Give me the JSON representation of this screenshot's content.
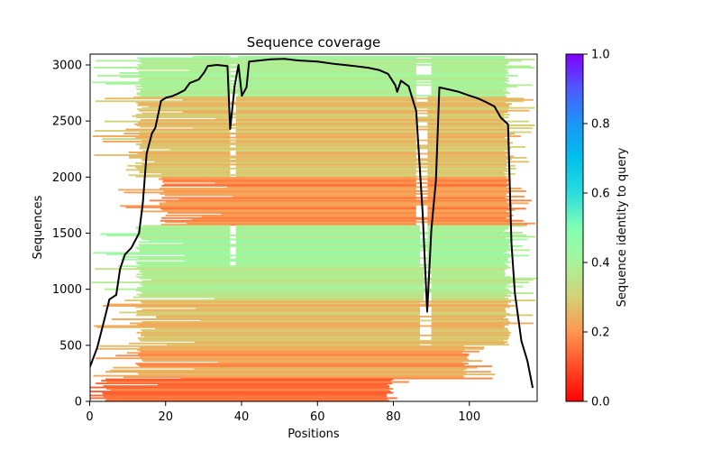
{
  "chart_data": {
    "type": "heatmap",
    "title": "Sequence coverage",
    "xlabel": "Positions",
    "ylabel": "Sequences",
    "xlim": [
      0,
      118
    ],
    "ylim": [
      0,
      3080
    ],
    "xticks": [
      0,
      20,
      40,
      60,
      80,
      100
    ],
    "xtick_labels": [
      "0",
      "20",
      "40",
      "60",
      "80",
      "100"
    ],
    "yticks": [
      0,
      500,
      1000,
      1500,
      2000,
      2500,
      3000
    ],
    "ytick_labels": [
      "0",
      "500",
      "1000",
      "1500",
      "2000",
      "2500",
      "3000"
    ],
    "grid": false,
    "colorbar": {
      "label": "Sequence identity to query",
      "colormap": "rainbow_r",
      "range": [
        0.0,
        1.0
      ],
      "ticks": [
        0.0,
        0.2,
        0.4,
        0.6,
        0.8,
        1.0
      ],
      "tick_labels": [
        "0.0",
        "0.2",
        "0.4",
        "0.6",
        "0.8",
        "1.0"
      ],
      "stops": [
        {
          "v": 0.0,
          "color": "#ff0000"
        },
        {
          "v": 0.1,
          "color": "#ff4d27"
        },
        {
          "v": 0.2,
          "color": "#ff964e"
        },
        {
          "v": 0.3,
          "color": "#d4d176"
        },
        {
          "v": 0.4,
          "color": "#a8f49a"
        },
        {
          "v": 0.5,
          "color": "#80ffb4"
        },
        {
          "v": 0.6,
          "color": "#2adddd"
        },
        {
          "v": 0.7,
          "color": "#00c0ec"
        },
        {
          "v": 0.8,
          "color": "#1a96f6"
        },
        {
          "v": 0.9,
          "color": "#4e5afc"
        },
        {
          "v": 1.0,
          "color": "#8000ff"
        }
      ]
    },
    "alignment_blocks": [
      {
        "seq_range": [
          2720,
          3080
        ],
        "identity": 0.4,
        "core_pos": [
          14,
          111
        ],
        "gaps": [
          [
            37,
            39
          ],
          [
            86,
            90
          ]
        ]
      },
      {
        "seq_range": [
          2000,
          2720
        ],
        "identity": 0.27,
        "core_pos": [
          14,
          111
        ],
        "gaps": [
          [
            37,
            38.5
          ],
          [
            86,
            89
          ]
        ]
      },
      {
        "seq_range": [
          1570,
          2000
        ],
        "identity": 0.19,
        "core_pos": [
          20,
          111
        ],
        "gaps": [
          [
            86,
            89
          ]
        ]
      },
      {
        "seq_range": [
          1200,
          1570
        ],
        "identity": 0.41,
        "core_pos": [
          14,
          111
        ],
        "gaps": [
          [
            37,
            38.5
          ],
          [
            87,
            89
          ]
        ]
      },
      {
        "seq_range": [
          900,
          1200
        ],
        "identity": 0.36,
        "core_pos": [
          14,
          111
        ],
        "gaps": [
          [
            88,
            90
          ]
        ]
      },
      {
        "seq_range": [
          500,
          900
        ],
        "identity": 0.27,
        "core_pos": [
          14,
          111
        ],
        "gaps": [
          [
            87,
            90
          ]
        ]
      },
      {
        "seq_range": [
          200,
          500
        ],
        "identity": 0.22,
        "core_pos": [
          14,
          100
        ],
        "gaps": []
      },
      {
        "seq_range": [
          0,
          200
        ],
        "identity": 0.14,
        "core_pos": [
          5,
          80
        ],
        "gaps": []
      }
    ],
    "coverage_line": {
      "name": "coverage",
      "color": "#000000",
      "x": [
        0,
        2,
        3.8,
        5.2,
        7,
        8,
        9.3,
        11,
        13,
        14,
        15,
        16.4,
        17.3,
        18.8,
        20.2,
        21.6,
        23,
        25,
        26.4,
        28.7,
        30.2,
        31.1,
        33.5,
        36.3,
        37,
        38.2,
        39.2,
        40.1,
        41.3,
        42,
        44.9,
        47.7,
        51.3,
        54.8,
        60,
        64.3,
        69.8,
        73.4,
        76.2,
        78.6,
        80.5,
        81,
        82,
        84,
        86,
        87.7,
        88.9,
        90,
        91.2,
        92.1,
        94.8,
        97.2,
        99.3,
        102.4,
        104.3,
        106.6,
        108.3,
        110.2,
        111.1,
        112,
        113.7,
        115.3,
        116.7
      ],
      "y": [
        300,
        480,
        720,
        910,
        950,
        1180,
        1310,
        1370,
        1500,
        1770,
        2210,
        2390,
        2440,
        2680,
        2710,
        2720,
        2740,
        2775,
        2840,
        2870,
        2935,
        2990,
        3000,
        2990,
        2430,
        2815,
        3000,
        2725,
        2800,
        3030,
        3040,
        3050,
        3055,
        3040,
        3030,
        3010,
        2990,
        2975,
        2955,
        2920,
        2820,
        2760,
        2860,
        2810,
        2590,
        1690,
        800,
        1530,
        1970,
        2800,
        2780,
        2760,
        2735,
        2700,
        2670,
        2630,
        2530,
        2470,
        1410,
        965,
        540,
        360,
        120
      ]
    }
  }
}
